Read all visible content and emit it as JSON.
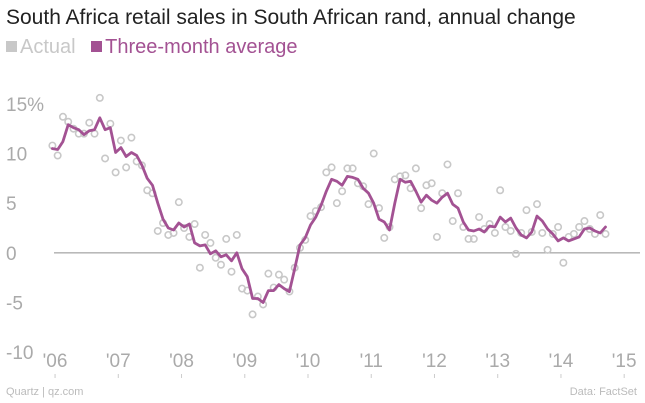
{
  "colors": {
    "actual": "#c8c8c8",
    "average": "#a35293",
    "text": "#222222",
    "muted": "#bbbbbb",
    "zero": "#8f8f8f"
  },
  "footer": {
    "source": "Quartz | qz.com",
    "data_credit": "Data: FactSet"
  },
  "chart_data": {
    "type": "line",
    "title": "South Africa retail sales in South African rand, annual change",
    "xlabel": "",
    "ylabel": "",
    "xlim": [
      2005.92,
      2015.25
    ],
    "ylim": [
      -12,
      17
    ],
    "yticks": [
      15,
      10,
      5,
      0,
      -5,
      -10
    ],
    "ytick_labels": [
      "15%",
      "10",
      "5",
      "0",
      "-5",
      "-10"
    ],
    "xticks": [
      2006,
      2007,
      2008,
      2009,
      2010,
      2011,
      2012,
      2013,
      2014,
      2015
    ],
    "xtick_labels": [
      "'06",
      "'07",
      "'08",
      "'09",
      "'10",
      "'11",
      "'12",
      "'13",
      "'14",
      "'15"
    ],
    "legend": [
      "Actual",
      "Three-month average"
    ],
    "legend_position": "top-left",
    "start": 2005.958,
    "step": 0.0833,
    "series": [
      {
        "name": "Actual",
        "style": "hollow-circles",
        "values": [
          10.8,
          9.8,
          13.7,
          13.2,
          12.5,
          12.0,
          12.0,
          13.1,
          12.0,
          15.6,
          9.5,
          13.0,
          8.1,
          11.3,
          8.6,
          11.6,
          9.2,
          8.8,
          6.3,
          6.0,
          2.2,
          3.0,
          1.8,
          2.0,
          5.1,
          2.5,
          1.6,
          2.9,
          -1.5,
          1.8,
          1.0,
          -0.5,
          -1.2,
          1.4,
          -1.9,
          1.8,
          -3.6,
          -3.8,
          -6.2,
          -4.4,
          -5.2,
          -2.1,
          -3.5,
          -2.2,
          -2.7,
          -3.9,
          -1.5,
          0.5,
          1.3,
          3.7,
          4.2,
          4.6,
          8.1,
          8.6,
          5.0,
          6.2,
          8.5,
          8.5,
          7.0,
          6.7,
          4.9,
          10.0,
          4.5,
          1.5,
          2.6,
          7.4,
          7.7,
          7.8,
          6.5,
          8.5,
          4.5,
          6.8,
          7.0,
          1.6,
          6.0,
          8.9,
          3.2,
          6.0,
          2.6,
          1.4,
          1.4,
          3.6,
          2.4,
          2.9,
          2.0,
          6.3,
          2.6,
          2.2,
          -0.1,
          2.0,
          4.3,
          2.1,
          4.9,
          2.0,
          0.3,
          1.9,
          2.6,
          -1.0,
          1.6,
          1.9,
          2.6,
          3.2,
          2.4,
          1.9,
          3.8,
          1.9
        ]
      },
      {
        "name": "Three-month average",
        "style": "line",
        "values": [
          10.5,
          10.4,
          11.2,
          12.9,
          12.6,
          12.4,
          11.9,
          12.3,
          12.4,
          13.6,
          12.4,
          12.6,
          10.1,
          10.6,
          9.7,
          10.1,
          9.8,
          8.8,
          7.5,
          6.8,
          5.0,
          3.4,
          2.5,
          2.3,
          3.0,
          2.6,
          2.9,
          1.0,
          0.7,
          0.8,
          -0.1,
          0.2,
          -0.4,
          -0.2,
          -0.8,
          0.0,
          -1.6,
          -2.4,
          -4.6,
          -4.6,
          -5.0,
          -3.8,
          -3.8,
          -3.2,
          -3.6,
          -3.9,
          -1.6,
          0.8,
          1.5,
          2.8,
          3.6,
          4.8,
          6.2,
          7.4,
          7.2,
          6.8,
          7.7,
          7.6,
          7.4,
          6.5,
          6.0,
          5.0,
          3.4,
          3.1,
          2.3,
          5.0,
          7.4,
          7.1,
          7.2,
          6.2,
          5.1,
          5.8,
          5.3,
          5.0,
          5.6,
          6.0,
          4.9,
          4.5,
          3.1,
          2.3,
          2.2,
          2.4,
          2.1,
          2.7,
          2.6,
          3.6,
          3.1,
          3.5,
          2.5,
          1.8,
          1.5,
          2.1,
          3.7,
          3.2,
          2.4,
          1.9,
          1.2,
          1.5,
          1.2,
          1.4,
          1.6,
          2.4,
          2.5,
          2.2,
          2.0,
          2.6
        ]
      }
    ]
  }
}
